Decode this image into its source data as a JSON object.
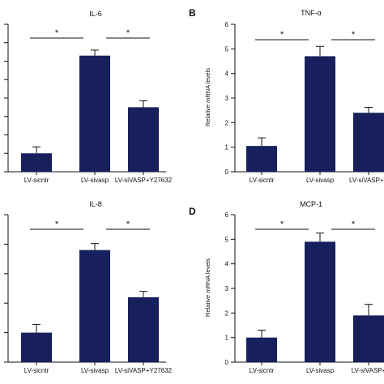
{
  "chart_data": [
    {
      "type": "bar",
      "panel_letter": "",
      "title": "IL-6",
      "ylabel": "",
      "categories": [
        "LV-sicntr",
        "LV-sivasp",
        "LV-siVASP+Y27632"
      ],
      "values": [
        1.0,
        6.3,
        3.5
      ],
      "errors": [
        0.35,
        0.3,
        0.35
      ],
      "ylim": [
        0,
        8
      ],
      "yticks": [
        0,
        1,
        2,
        3,
        4,
        5,
        6,
        7,
        8
      ],
      "show_tick_labels": false,
      "significance": [
        {
          "from": 0,
          "to": 1,
          "label": "*",
          "level": 7.7
        },
        {
          "from": 1,
          "to": 2,
          "label": "*",
          "level": 7.7
        }
      ],
      "bar_color": "#17205c"
    },
    {
      "type": "bar",
      "panel_letter": "B",
      "title": "TNF-α",
      "ylabel": "Relative mRNA levels",
      "categories": [
        "LV-sicntr",
        "LV-sivasp",
        "LV-siVASP+Y"
      ],
      "values": [
        1.05,
        4.7,
        2.4
      ],
      "errors": [
        0.33,
        0.4,
        0.22
      ],
      "ylim": [
        0,
        6
      ],
      "yticks": [
        0,
        1,
        2,
        3,
        4,
        5,
        6
      ],
      "show_tick_labels": true,
      "significance": [
        {
          "from": 0,
          "to": 1,
          "label": "*",
          "level": 5.4
        },
        {
          "from": 1,
          "to": 2,
          "label": "*",
          "level": 5.4
        }
      ],
      "bar_color": "#17205c"
    },
    {
      "type": "bar",
      "panel_letter": "",
      "title": "IL-8",
      "ylabel": "",
      "categories": [
        "LV-sicntr",
        "LV-sivasp",
        "LV-siVASP+Y27632"
      ],
      "values": [
        1.0,
        3.8,
        2.2
      ],
      "errors": [
        0.28,
        0.22,
        0.2
      ],
      "ylim": [
        0,
        5
      ],
      "yticks": [
        0,
        1,
        2,
        3,
        4,
        5
      ],
      "show_tick_labels": false,
      "significance": [
        {
          "from": 0,
          "to": 1,
          "label": "*",
          "level": 4.5
        },
        {
          "from": 1,
          "to": 2,
          "label": "*",
          "level": 4.5
        }
      ],
      "bar_color": "#17205c"
    },
    {
      "type": "bar",
      "panel_letter": "D",
      "title": "MCP-1",
      "ylabel": "Relative mRNA levels",
      "categories": [
        "LV-sicntr",
        "LV-sivasp",
        "LV-siVASP+"
      ],
      "values": [
        1.0,
        4.9,
        1.9
      ],
      "errors": [
        0.3,
        0.35,
        0.45
      ],
      "ylim": [
        0,
        6
      ],
      "yticks": [
        0,
        1,
        2,
        3,
        4,
        5,
        6
      ],
      "show_tick_labels": true,
      "significance": [
        {
          "from": 0,
          "to": 1,
          "label": "*",
          "level": 5.6
        },
        {
          "from": 1,
          "to": 2,
          "label": "*",
          "level": 5.6
        }
      ],
      "bar_color": "#17205c"
    }
  ]
}
